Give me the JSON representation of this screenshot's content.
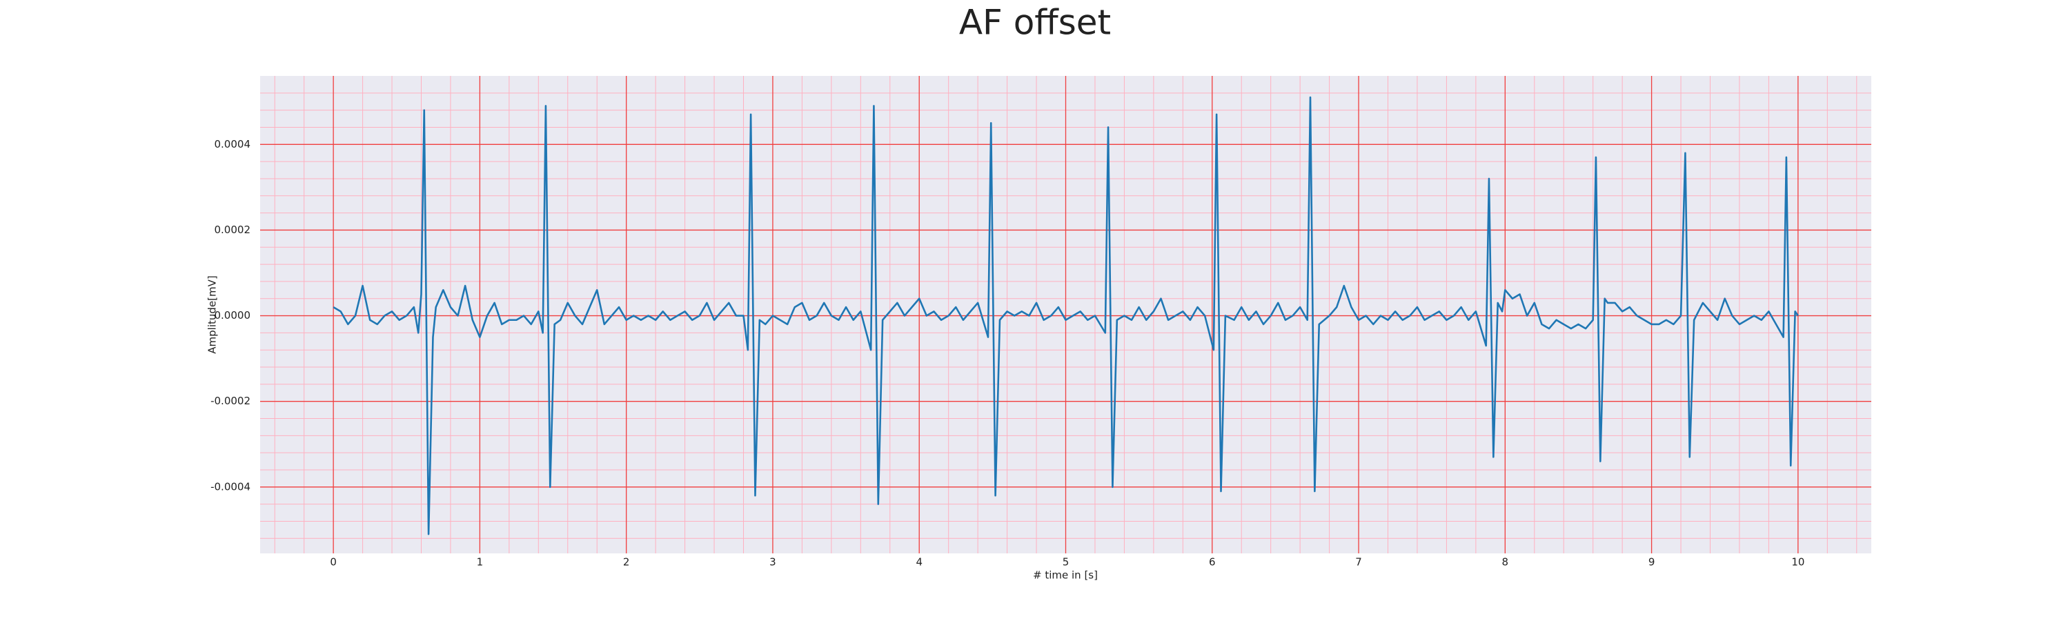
{
  "chart_data": {
    "type": "line",
    "title": "AF offset",
    "xlabel": "# time in [s]",
    "ylabel": "Amplitude[mV]",
    "color": "#1f77b4",
    "grid": true,
    "minor_grid": 5,
    "xlim": [
      -0.5,
      10.5
    ],
    "xticks": [
      0,
      1,
      2,
      3,
      4,
      5,
      6,
      7,
      8,
      9,
      10
    ],
    "ylim": [
      -0.000555,
      0.00056
    ],
    "yticks": [
      -0.0004,
      -0.0002,
      {
        "value": 0,
        "label": "0.0000"
      },
      0.0002,
      0.0004
    ],
    "x": [
      0,
      0.05,
      0.1,
      0.15,
      0.2,
      0.25,
      0.3,
      0.35,
      0.4,
      0.45,
      0.5,
      0.55,
      0.58,
      0.6,
      0.62,
      0.65,
      0.68,
      0.7,
      0.75,
      0.8,
      0.85,
      0.9,
      0.95,
      1,
      1.05,
      1.1,
      1.15,
      1.2,
      1.25,
      1.3,
      1.35,
      1.4,
      1.43,
      1.45,
      1.48,
      1.51,
      1.55,
      1.6,
      1.65,
      1.7,
      1.75,
      1.8,
      1.85,
      1.9,
      1.95,
      2,
      2.05,
      2.1,
      2.15,
      2.2,
      2.25,
      2.3,
      2.35,
      2.4,
      2.45,
      2.5,
      2.55,
      2.6,
      2.65,
      2.7,
      2.75,
      2.8,
      2.83,
      2.85,
      2.88,
      2.91,
      2.95,
      3,
      3.05,
      3.1,
      3.15,
      3.2,
      3.25,
      3.3,
      3.35,
      3.4,
      3.45,
      3.5,
      3.55,
      3.6,
      3.67,
      3.69,
      3.72,
      3.75,
      3.8,
      3.85,
      3.9,
      3.95,
      4,
      4.05,
      4.1,
      4.15,
      4.2,
      4.25,
      4.3,
      4.35,
      4.4,
      4.47,
      4.49,
      4.52,
      4.55,
      4.6,
      4.65,
      4.7,
      4.75,
      4.8,
      4.85,
      4.9,
      4.95,
      5,
      5.05,
      5.1,
      5.15,
      5.2,
      5.27,
      5.29,
      5.32,
      5.35,
      5.4,
      5.45,
      5.5,
      5.55,
      5.6,
      5.65,
      5.7,
      5.75,
      5.8,
      5.85,
      5.9,
      5.95,
      6.01,
      6.03,
      6.06,
      6.09,
      6.15,
      6.2,
      6.25,
      6.3,
      6.35,
      6.4,
      6.45,
      6.5,
      6.55,
      6.6,
      6.65,
      6.67,
      6.7,
      6.73,
      6.8,
      6.85,
      6.9,
      6.95,
      7,
      7.05,
      7.1,
      7.15,
      7.2,
      7.25,
      7.3,
      7.35,
      7.4,
      7.45,
      7.5,
      7.55,
      7.6,
      7.65,
      7.7,
      7.75,
      7.8,
      7.87,
      7.89,
      7.92,
      7.95,
      7.98,
      8,
      8.05,
      8.1,
      8.15,
      8.2,
      8.25,
      8.3,
      8.35,
      8.4,
      8.45,
      8.5,
      8.55,
      8.6,
      8.62,
      8.65,
      8.68,
      8.7,
      8.75,
      8.8,
      8.85,
      8.9,
      8.95,
      9,
      9.05,
      9.1,
      9.15,
      9.2,
      9.23,
      9.26,
      9.29,
      9.35,
      9.4,
      9.45,
      9.5,
      9.55,
      9.6,
      9.65,
      9.7,
      9.75,
      9.8,
      9.85,
      9.9,
      9.92,
      9.95,
      9.98,
      10
    ],
    "values": [
      2e-05,
      1e-05,
      -2e-05,
      0,
      7e-05,
      -1e-05,
      -2e-05,
      0,
      1e-05,
      -1e-05,
      0,
      2e-05,
      -4e-05,
      5e-05,
      0.00048,
      -0.00051,
      -5e-05,
      2e-05,
      6e-05,
      2e-05,
      0,
      7e-05,
      -1e-05,
      -5e-05,
      0,
      3e-05,
      -2e-05,
      -1e-05,
      -1e-05,
      0,
      -2e-05,
      1e-05,
      -4e-05,
      0.00049,
      -0.0004,
      -2e-05,
      -1e-05,
      3e-05,
      0,
      -2e-05,
      2e-05,
      6e-05,
      -2e-05,
      0,
      2e-05,
      -1e-05,
      0,
      -1e-05,
      0,
      -1e-05,
      1e-05,
      -1e-05,
      0,
      1e-05,
      -1e-05,
      0,
      3e-05,
      -1e-05,
      1e-05,
      3e-05,
      0,
      0,
      -8e-05,
      0.00047,
      -0.00042,
      -1e-05,
      -2e-05,
      0,
      -1e-05,
      -2e-05,
      2e-05,
      3e-05,
      -1e-05,
      0,
      3e-05,
      0,
      -1e-05,
      2e-05,
      -1e-05,
      1e-05,
      -8e-05,
      0.00049,
      -0.00044,
      -1e-05,
      1e-05,
      3e-05,
      0,
      2e-05,
      4e-05,
      0,
      1e-05,
      -1e-05,
      0,
      2e-05,
      -1e-05,
      1e-05,
      3e-05,
      -5e-05,
      0.00045,
      -0.00042,
      -1e-05,
      1e-05,
      0,
      1e-05,
      0,
      3e-05,
      -1e-05,
      0,
      2e-05,
      -1e-05,
      0,
      1e-05,
      -1e-05,
      0,
      -4e-05,
      0.00044,
      -0.0004,
      -1e-05,
      0,
      -1e-05,
      2e-05,
      -1e-05,
      1e-05,
      4e-05,
      -1e-05,
      0,
      1e-05,
      -1e-05,
      2e-05,
      0,
      -8e-05,
      0.00047,
      -0.00041,
      0,
      -1e-05,
      2e-05,
      -1e-05,
      1e-05,
      -2e-05,
      0,
      3e-05,
      -1e-05,
      0,
      2e-05,
      -1e-05,
      0.00051,
      -0.00041,
      -2e-05,
      0,
      2e-05,
      7e-05,
      2e-05,
      -1e-05,
      0,
      -2e-05,
      0,
      -1e-05,
      1e-05,
      -1e-05,
      0,
      2e-05,
      -1e-05,
      0,
      1e-05,
      -1e-05,
      0,
      2e-05,
      -1e-05,
      1e-05,
      -7e-05,
      0.00032,
      -0.00033,
      3e-05,
      1e-05,
      6e-05,
      4e-05,
      5e-05,
      0,
      3e-05,
      -2e-05,
      -3e-05,
      -1e-05,
      -2e-05,
      -3e-05,
      -2e-05,
      -3e-05,
      -1e-05,
      0.00037,
      -0.00034,
      4e-05,
      3e-05,
      3e-05,
      1e-05,
      2e-05,
      0,
      -1e-05,
      -2e-05,
      -2e-05,
      -1e-05,
      -2e-05,
      0,
      0.00038,
      -0.00033,
      -1e-05,
      3e-05,
      1e-05,
      -1e-05,
      4e-05,
      0,
      -2e-05,
      -1e-05,
      0,
      -1e-05,
      1e-05,
      -2e-05,
      -5e-05,
      0.00037,
      -0.00035,
      1e-05,
      0
    ]
  }
}
